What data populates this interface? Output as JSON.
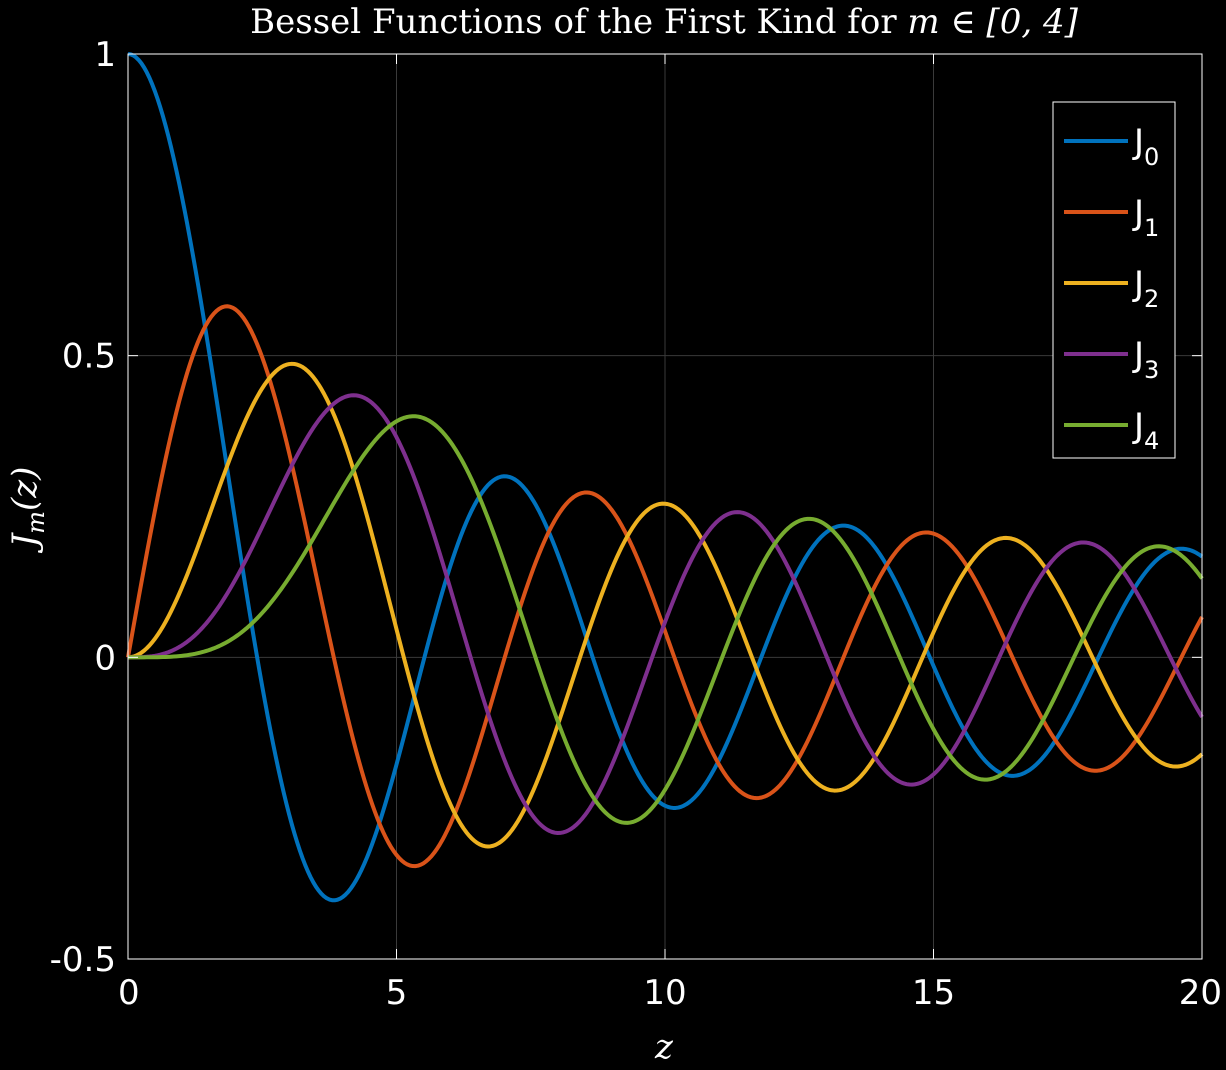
{
  "chart_data": {
    "type": "line",
    "title_text": "Bessel Functions of the First Kind for ",
    "title_math": "m ∈ [0, 4]",
    "xlabel": "z",
    "ylabel_main": "J",
    "ylabel_sub": "m",
    "ylabel_tail": "(z)",
    "xlim": [
      0,
      20
    ],
    "ylim": [
      -0.5,
      1
    ],
    "xticks": [
      0,
      5,
      10,
      15,
      20
    ],
    "xtick_labels": [
      "0",
      "5",
      "10",
      "15",
      "20"
    ],
    "yticks": [
      -0.5,
      0,
      0.5,
      1
    ],
    "ytick_labels": [
      "-0.5",
      "0",
      "0.5",
      "1"
    ],
    "grid": true,
    "legend_position": "top-right",
    "series": [
      {
        "name": "J",
        "sub": "0",
        "order": 0,
        "color": "#0072BD"
      },
      {
        "name": "J",
        "sub": "1",
        "order": 1,
        "color": "#D95319"
      },
      {
        "name": "J",
        "sub": "2",
        "order": 2,
        "color": "#EDB120"
      },
      {
        "name": "J",
        "sub": "3",
        "order": 3,
        "color": "#7E2F8E"
      },
      {
        "name": "J",
        "sub": "4",
        "order": 4,
        "color": "#77AC30"
      }
    ]
  }
}
